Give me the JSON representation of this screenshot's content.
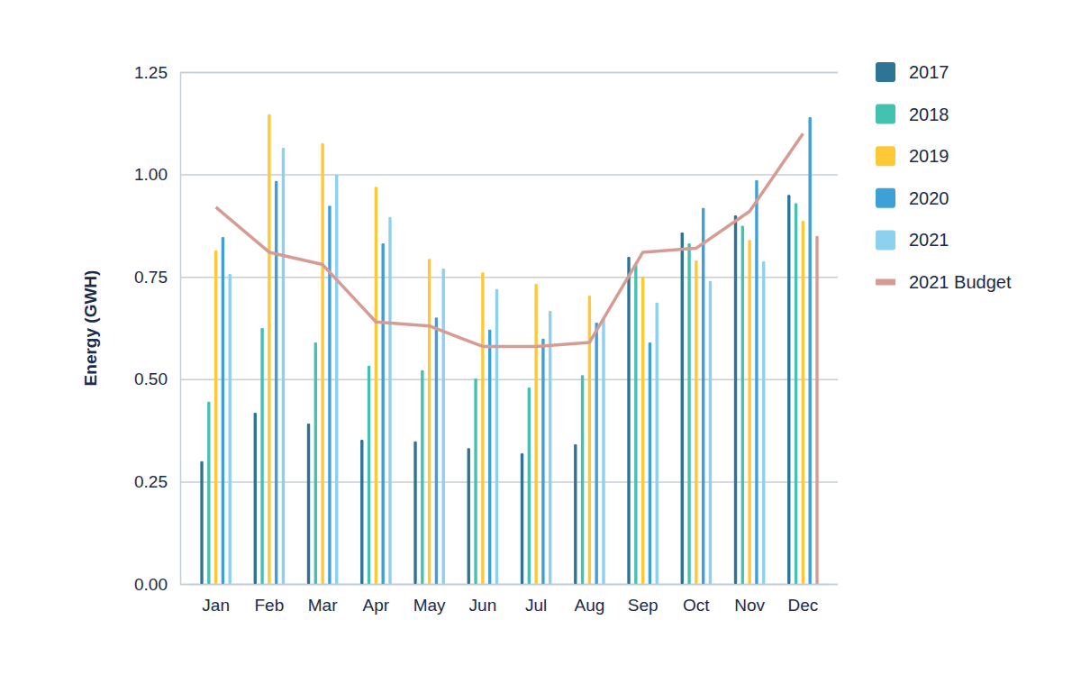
{
  "chart_data": {
    "type": "bar",
    "y_label": "Energy (GWH)",
    "categories": [
      "Jan",
      "Feb",
      "Mar",
      "Apr",
      "May",
      "Jun",
      "Jul",
      "Aug",
      "Sep",
      "Oct",
      "Nov",
      "Dec"
    ],
    "series": [
      {
        "name": "2017",
        "color": "#2e7595",
        "values": [
          0.3,
          0.418,
          0.392,
          0.352,
          0.348,
          0.332,
          0.319,
          0.341,
          0.799,
          0.858,
          0.9,
          0.95
        ]
      },
      {
        "name": "2018",
        "color": "#45c1b0",
        "values": [
          0.445,
          0.625,
          0.59,
          0.533,
          0.522,
          0.502,
          0.48,
          0.51,
          0.78,
          0.832,
          0.875,
          0.93
        ]
      },
      {
        "name": "2019",
        "color": "#fec837",
        "values": [
          0.815,
          1.147,
          1.076,
          0.97,
          0.794,
          0.761,
          0.733,
          0.704,
          0.75,
          0.79,
          0.84,
          0.887
        ]
      },
      {
        "name": "2020",
        "color": "#3fa0d8",
        "values": [
          0.847,
          0.984,
          0.924,
          0.832,
          0.651,
          0.621,
          0.599,
          0.638,
          0.59,
          0.918,
          0.986,
          1.14
        ]
      },
      {
        "name": "2021",
        "color": "#8dd0f0",
        "colors": [
          "#8dd0f0",
          "#8dd0f0",
          "#8dd0f0",
          "#8dd0f0",
          "#8dd0f0",
          "#8dd0f0",
          "#8dd0f0",
          "#8dd0f0",
          "#8dd0f0",
          "#8dd0f0",
          "#8dd0f0",
          "#d69c94"
        ],
        "values": [
          0.757,
          1.065,
          0.999,
          0.896,
          0.77,
          0.72,
          0.667,
          0.65,
          0.687,
          0.74,
          0.788,
          0.85
        ]
      },
      {
        "name": "2021 Budget",
        "type": "line",
        "color": "#d69c94",
        "values": [
          0.92,
          0.81,
          0.78,
          0.64,
          0.63,
          0.58,
          0.58,
          0.59,
          0.81,
          0.82,
          0.91,
          1.1
        ]
      }
    ],
    "ylim": [
      0,
      1.25
    ],
    "yticks": [
      {
        "value": 0,
        "label": "0.00"
      },
      0.25,
      {
        "value": 0.5,
        "label": "0.50"
      },
      0.75,
      {
        "value": 1,
        "label": "1.00"
      },
      1.25
    ],
    "grid": true,
    "legend": "right"
  }
}
